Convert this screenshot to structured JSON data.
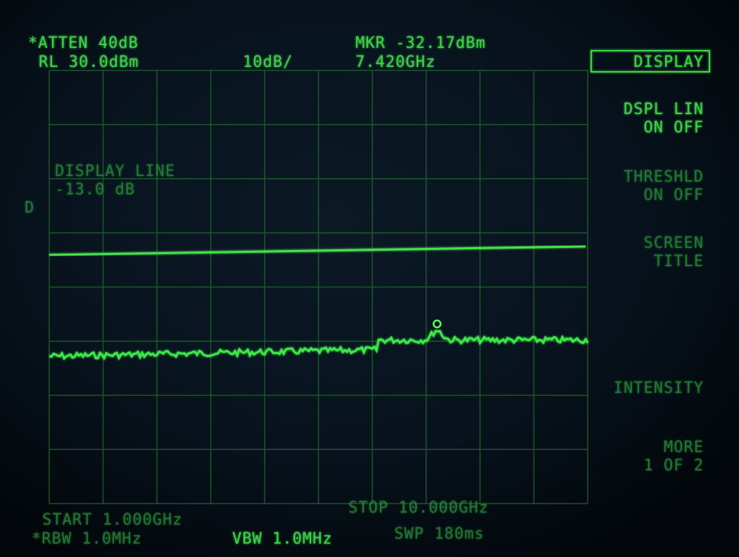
{
  "header": {
    "atten": "*ATTEN 40dB",
    "ref_level": "RL 30.0dBm",
    "scale": "10dB/",
    "marker_level": "MKR -32.17dBm",
    "marker_freq": "7.420GHz"
  },
  "softkeys": {
    "title": "DISPLAY",
    "items": [
      {
        "line1": "DSPL LIN",
        "line2": "ON OFF"
      },
      {
        "line1": "THRESHLD",
        "line2": "ON OFF"
      },
      {
        "line1": "SCREEN",
        "line2": "TITLE"
      },
      {
        "line1": "INTENSITY",
        "line2": ""
      },
      {
        "line1": "MORE",
        "line2": "1 OF 2"
      }
    ]
  },
  "annotation": {
    "label": "DISPLAY LINE",
    "value": "-13.0 dB",
    "marker": "D"
  },
  "footer": {
    "start": "START 1.000GHz",
    "stop": "STOP 10.000GHz",
    "rbw": "*RBW 1.0MHz",
    "vbw": "VBW 1.0MHz",
    "sweep": "SWP 180ms"
  }
}
